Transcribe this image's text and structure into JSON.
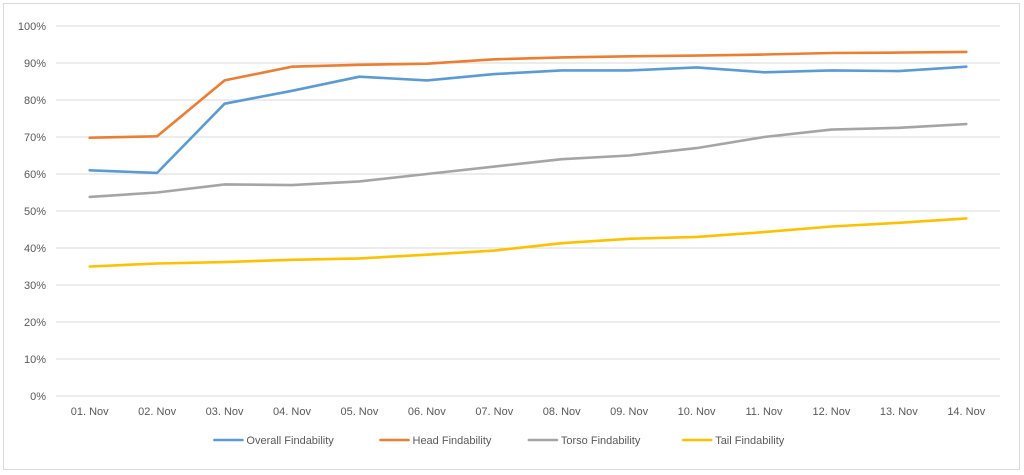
{
  "chart_data": {
    "type": "line",
    "title": "",
    "xlabel": "",
    "ylabel": "",
    "categories": [
      "01. Nov",
      "02. Nov",
      "03. Nov",
      "04. Nov",
      "05. Nov",
      "06. Nov",
      "07. Nov",
      "08. Nov",
      "09. Nov",
      "10. Nov",
      "11. Nov",
      "12. Nov",
      "13. Nov",
      "14. Nov"
    ],
    "ylim": [
      0,
      100
    ],
    "yticks": [
      0,
      10,
      20,
      30,
      40,
      50,
      60,
      70,
      80,
      90,
      100
    ],
    "ytick_labels": [
      "0%",
      "10%",
      "20%",
      "30%",
      "40%",
      "50%",
      "60%",
      "70%",
      "80%",
      "90%",
      "100%"
    ],
    "grid": "horizontal",
    "legend_position": "bottom",
    "series": [
      {
        "name": "Overall Findability",
        "color": "#5b9bd5",
        "values": [
          61,
          60.3,
          79,
          82.5,
          86.3,
          85.3,
          87,
          88,
          88,
          88.8,
          87.5,
          88,
          87.8,
          89
        ]
      },
      {
        "name": "Head Findability",
        "color": "#ed7d31",
        "values": [
          69.8,
          70.2,
          85.3,
          89,
          89.5,
          89.8,
          91,
          91.5,
          91.8,
          92,
          92.3,
          92.7,
          92.8,
          93
        ]
      },
      {
        "name": "Torso Findability",
        "color": "#a5a5a5",
        "values": [
          53.8,
          55,
          57.2,
          57,
          58,
          60,
          62,
          64,
          65,
          67,
          70,
          72,
          72.5,
          73.5
        ]
      },
      {
        "name": "Tail Findability",
        "color": "#ffc000",
        "values": [
          35,
          35.8,
          36.2,
          36.8,
          37.2,
          38.2,
          39.3,
          41.3,
          42.5,
          43,
          44.3,
          45.8,
          46.8,
          48
        ]
      }
    ]
  }
}
